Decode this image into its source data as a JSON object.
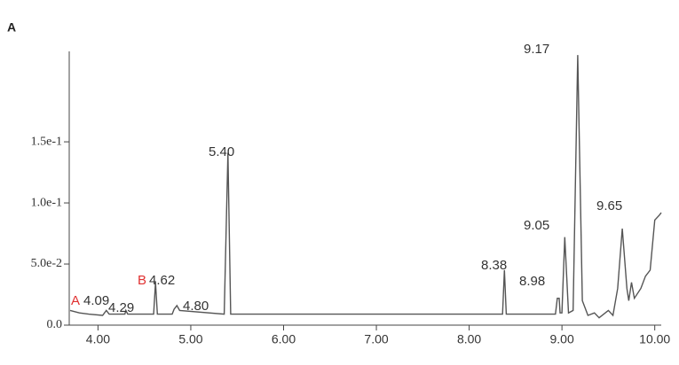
{
  "panel_label": "A",
  "chart_data": {
    "type": "line",
    "x": [
      3.7,
      3.8,
      3.9,
      4.05,
      4.09,
      4.12,
      4.29,
      4.3,
      4.32,
      4.6,
      4.62,
      4.64,
      4.8,
      4.82,
      4.85,
      4.88,
      5.36,
      5.4,
      5.43,
      8.36,
      8.38,
      8.4,
      8.93,
      8.95,
      8.97,
      8.98,
      9.0,
      9.03,
      9.07,
      9.12,
      9.17,
      9.22,
      9.28,
      9.35,
      9.4,
      9.5,
      9.55,
      9.6,
      9.65,
      9.7,
      9.72,
      9.75,
      9.78,
      9.85,
      9.9,
      9.95,
      10.0,
      10.05,
      10.07
    ],
    "values": [
      0.012,
      0.01,
      0.009,
      0.008,
      0.012,
      0.009,
      0.009,
      0.012,
      0.009,
      0.009,
      0.035,
      0.009,
      0.009,
      0.013,
      0.016,
      0.012,
      0.009,
      0.141,
      0.009,
      0.009,
      0.045,
      0.009,
      0.009,
      0.022,
      0.022,
      0.01,
      0.01,
      0.072,
      0.01,
      0.012,
      0.221,
      0.02,
      0.008,
      0.01,
      0.006,
      0.012,
      0.008,
      0.03,
      0.079,
      0.03,
      0.02,
      0.035,
      0.022,
      0.03,
      0.04,
      0.045,
      0.086,
      0.09,
      0.092
    ],
    "color": "#555555",
    "xlim": [
      3.69,
      10.07
    ],
    "ylim": [
      0,
      0.224
    ],
    "xticks": [
      {
        "value": 4,
        "label": "4.00"
      },
      {
        "value": 5,
        "label": "5.00"
      },
      {
        "value": 6,
        "label": "6.00"
      },
      {
        "value": 7,
        "label": "7.00"
      },
      {
        "value": 8,
        "label": "8.00"
      },
      {
        "value": 9,
        "label": "9.00"
      },
      {
        "value": 10,
        "label": "10.00"
      }
    ],
    "yticks": [
      {
        "value": 0,
        "label": "0.0"
      },
      {
        "value": 0.05,
        "label": "5.0e-2"
      },
      {
        "value": 0.1,
        "label": "1.0e-1"
      },
      {
        "value": 0.15,
        "label": "1.5e-1"
      }
    ],
    "annotations": [
      {
        "text": "A",
        "color": "#e03030"
      },
      {
        "text": "4.09",
        "color": "#333333"
      },
      {
        "text": "4.29",
        "color": "#333333"
      },
      {
        "text": "B",
        "color": "#e03030"
      },
      {
        "text": "4.62",
        "color": "#333333"
      },
      {
        "text": "4.80",
        "color": "#333333"
      },
      {
        "text": "5.40",
        "color": "#333333"
      },
      {
        "text": "8.38",
        "color": "#333333"
      },
      {
        "text": "8.98",
        "color": "#333333"
      },
      {
        "text": "9.05",
        "color": "#333333"
      },
      {
        "text": "9.17",
        "color": "#333333"
      },
      {
        "text": "9.65",
        "color": "#333333"
      }
    ]
  }
}
